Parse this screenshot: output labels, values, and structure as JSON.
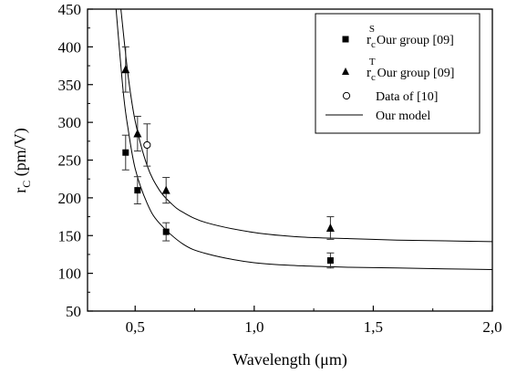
{
  "chart_data": {
    "type": "scatter",
    "xlabel": "Wavelength (μm)",
    "ylabel": {
      "main": "r",
      "sub": "C",
      "rest": " (pm/V)"
    },
    "xlim": [
      0.3,
      2.0
    ],
    "ylim": [
      50,
      450
    ],
    "x_ticks": [
      0.5,
      1.0,
      1.5,
      2.0
    ],
    "x_tick_labels": [
      "0,5",
      "1,0",
      "1,5",
      "2,0"
    ],
    "y_ticks": [
      50,
      100,
      150,
      200,
      250,
      300,
      350,
      400,
      450
    ],
    "y_tick_labels": [
      "50",
      "100",
      "150",
      "200",
      "250",
      "300",
      "350",
      "400",
      "450"
    ],
    "grid": false,
    "legend_position": "top-right",
    "series": [
      {
        "name": "r_c^S Our group [09]",
        "legend_main": "r",
        "legend_sub": "c",
        "legend_sup": "S",
        "legend_text": "Our group [09]",
        "marker": "square",
        "points": [
          {
            "x": 0.46,
            "y": 260,
            "err": 23
          },
          {
            "x": 0.51,
            "y": 210,
            "err": 18
          },
          {
            "x": 0.63,
            "y": 155,
            "err": 12
          },
          {
            "x": 1.32,
            "y": 117,
            "err": 10
          }
        ]
      },
      {
        "name": "r_c^T Our group [09]",
        "legend_main": "r",
        "legend_sub": "c",
        "legend_sup": "T",
        "legend_text": "Our group [09]",
        "marker": "triangle",
        "points": [
          {
            "x": 0.46,
            "y": 370,
            "err": 30
          },
          {
            "x": 0.51,
            "y": 285,
            "err": 23
          },
          {
            "x": 0.63,
            "y": 210,
            "err": 17
          },
          {
            "x": 1.32,
            "y": 160,
            "err": 15
          }
        ]
      },
      {
        "name": "Data of [10]",
        "legend_text": "Data of [10]",
        "marker": "open-circle",
        "points": [
          {
            "x": 0.55,
            "y": 270,
            "err": 28
          }
        ]
      }
    ],
    "model": {
      "name": "Our model",
      "legend_text": "Our model",
      "curves": [
        {
          "x": [
            0.42,
            0.45,
            0.47,
            0.5,
            0.55,
            0.6,
            0.7,
            0.8,
            1.0,
            1.2,
            1.4,
            1.6,
            1.8,
            2.0
          ],
          "y": [
            450,
            340,
            292,
            239,
            193,
            167,
            139,
            126,
            114,
            110,
            108,
            107,
            106,
            105
          ]
        },
        {
          "x": [
            0.44,
            0.47,
            0.5,
            0.55,
            0.6,
            0.65,
            0.7,
            0.8,
            1.0,
            1.2,
            1.4,
            1.6,
            1.8,
            2.0
          ],
          "y": [
            450,
            363,
            302,
            243,
            211,
            193,
            181,
            167,
            154,
            148,
            146,
            144,
            143,
            142
          ]
        }
      ]
    }
  }
}
